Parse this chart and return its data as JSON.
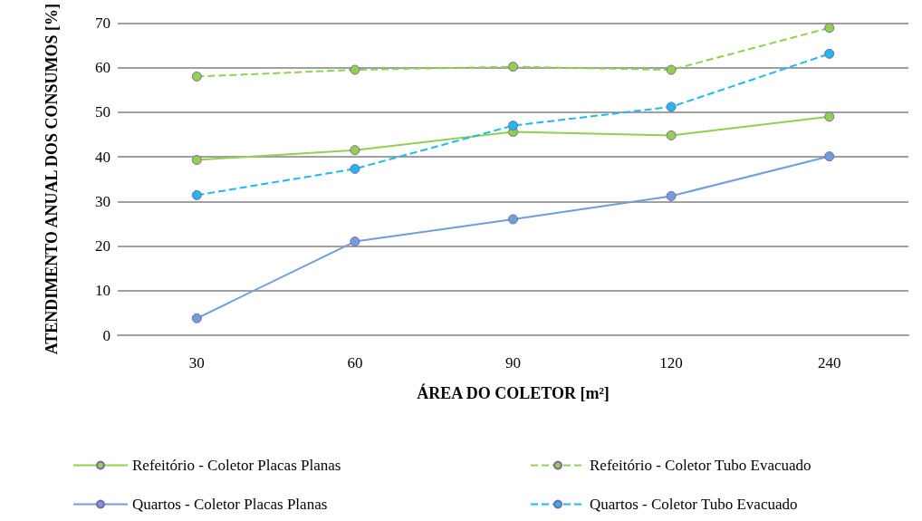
{
  "chart_data": {
    "type": "line",
    "xlabel": "ÁREA DO COLETOR [m²]",
    "ylabel": "ATENDIMENTO ANUAL DOS CONSUMOS [%]",
    "categories": [
      "30",
      "60",
      "90",
      "120",
      "240"
    ],
    "series": [
      {
        "name": "Refeitório - Coletor Placas Planas",
        "color": "#92d050",
        "line_style": "solid",
        "values": [
          39.3,
          41.5,
          45.6,
          44.8,
          49.0
        ]
      },
      {
        "name": "Refeitório - Coletor Tubo Evacuado",
        "color": "#92d050",
        "line_style": "dashed",
        "values": [
          58.0,
          59.5,
          60.2,
          59.5,
          68.9
        ]
      },
      {
        "name": "Quartos - Coletor Placas Planas",
        "color": "#6f9ed8",
        "line_style": "solid",
        "values": [
          3.8,
          21.0,
          26.0,
          31.2,
          40.1
        ]
      },
      {
        "name": "Quartos - Coletor Tubo Evacuado",
        "color": "#1fb8f0",
        "line_style": "dashed",
        "values": [
          31.4,
          37.3,
          47.0,
          51.2,
          63.1
        ]
      }
    ],
    "ylim": [
      0,
      70
    ],
    "yticks": [
      0,
      10,
      20,
      30,
      40,
      50,
      60,
      70
    ],
    "grid": "y",
    "legend": "bottom",
    "marker": "circle"
  }
}
